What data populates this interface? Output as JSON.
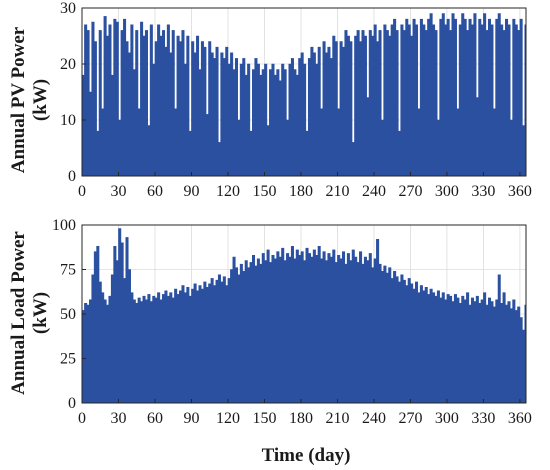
{
  "figure": {
    "xlabel": "Time (day)"
  },
  "chart_data": [
    {
      "type": "area",
      "ylabel_line1": "Annual PV Power",
      "ylabel_line2": "(kW)",
      "xlim": [
        0,
        365
      ],
      "ylim": [
        0,
        30
      ],
      "xticks": [
        0,
        30,
        60,
        90,
        120,
        150,
        180,
        210,
        240,
        270,
        300,
        330,
        360
      ],
      "yticks": [
        0,
        10,
        20,
        30
      ],
      "grid": true,
      "fill_color": "#2b50a0",
      "series": [
        {
          "x": [
            0,
            2,
            4,
            6,
            8,
            10,
            12,
            14,
            16,
            18,
            20,
            22,
            24,
            26,
            28,
            30,
            32,
            34,
            36,
            38,
            40,
            42,
            44,
            46,
            48,
            50,
            52,
            54,
            56,
            58,
            60,
            62,
            64,
            66,
            68,
            70,
            72,
            74,
            76,
            78,
            80,
            82,
            84,
            86,
            88,
            90,
            92,
            94,
            96,
            98,
            100,
            102,
            104,
            106,
            108,
            110,
            112,
            114,
            116,
            118,
            120,
            122,
            124,
            126,
            128,
            130,
            132,
            134,
            136,
            138,
            140,
            142,
            144,
            146,
            148,
            150,
            152,
            154,
            156,
            158,
            160,
            162,
            164,
            166,
            168,
            170,
            172,
            174,
            176,
            178,
            180,
            182,
            184,
            186,
            188,
            190,
            192,
            194,
            196,
            198,
            200,
            202,
            204,
            206,
            208,
            210,
            212,
            214,
            216,
            218,
            220,
            222,
            224,
            226,
            228,
            230,
            232,
            234,
            236,
            238,
            240,
            242,
            244,
            246,
            248,
            250,
            252,
            254,
            256,
            258,
            260,
            262,
            264,
            266,
            268,
            270,
            272,
            274,
            276,
            278,
            280,
            282,
            284,
            286,
            288,
            290,
            292,
            294,
            296,
            298,
            300,
            302,
            304,
            306,
            308,
            310,
            312,
            314,
            316,
            318,
            320,
            322,
            324,
            326,
            328,
            330,
            332,
            334,
            336,
            338,
            340,
            342,
            344,
            346,
            348,
            350,
            352,
            354,
            356,
            358,
            360,
            362,
            364
          ],
          "values": [
            18,
            27,
            26,
            15,
            27.5,
            24,
            8,
            26,
            12,
            28.5,
            25,
            27,
            18,
            28,
            27.5,
            10,
            26,
            28,
            24,
            22,
            27,
            19,
            26,
            12,
            27.5,
            25,
            26,
            9,
            27,
            20,
            24,
            27,
            25,
            26,
            23,
            27,
            22,
            26,
            12,
            25,
            24,
            26,
            20,
            25,
            8,
            24,
            22,
            25,
            19,
            24,
            23,
            11,
            24,
            22,
            21,
            23,
            6,
            22,
            21,
            23,
            20,
            22,
            19,
            21,
            10,
            20,
            21,
            18,
            20,
            8,
            19,
            21,
            20,
            18,
            19,
            20,
            9,
            19,
            20,
            18,
            19,
            17,
            20,
            19,
            10,
            20,
            21,
            19,
            18,
            21,
            22,
            20,
            8,
            21,
            23,
            22,
            20,
            23,
            12,
            24,
            22,
            23,
            21,
            25,
            24,
            12,
            24,
            23,
            26,
            25,
            24,
            6,
            25,
            26,
            24,
            26,
            25,
            14,
            26,
            25,
            27,
            24,
            26,
            10,
            27,
            26,
            25,
            27,
            28,
            26,
            8,
            27,
            26,
            28,
            27,
            25,
            28,
            27,
            12,
            28,
            27,
            26,
            28,
            29,
            27,
            26,
            10,
            28,
            29,
            27,
            28,
            26,
            29,
            28,
            12,
            27,
            29,
            28,
            26,
            28,
            27,
            29,
            14,
            28,
            27,
            29,
            26,
            28,
            27,
            12,
            28,
            29,
            27,
            26,
            28,
            27,
            10,
            28,
            27,
            26,
            28,
            9,
            27
          ]
        }
      ]
    },
    {
      "type": "area",
      "ylabel_line1": "Annual Load Power",
      "ylabel_line2": "(kW)",
      "xlim": [
        0,
        365
      ],
      "ylim": [
        0,
        100
      ],
      "xticks": [
        0,
        30,
        60,
        90,
        120,
        150,
        180,
        210,
        240,
        270,
        300,
        330,
        360
      ],
      "yticks": [
        0,
        25,
        50,
        75,
        100
      ],
      "grid": true,
      "fill_color": "#2b50a0",
      "series": [
        {
          "x": [
            0,
            2,
            4,
            6,
            8,
            10,
            12,
            14,
            16,
            18,
            20,
            22,
            24,
            26,
            28,
            30,
            32,
            34,
            36,
            38,
            40,
            42,
            44,
            46,
            48,
            50,
            52,
            54,
            56,
            58,
            60,
            62,
            64,
            66,
            68,
            70,
            72,
            74,
            76,
            78,
            80,
            82,
            84,
            86,
            88,
            90,
            92,
            94,
            96,
            98,
            100,
            102,
            104,
            106,
            108,
            110,
            112,
            114,
            116,
            118,
            120,
            122,
            124,
            126,
            128,
            130,
            132,
            134,
            136,
            138,
            140,
            142,
            144,
            146,
            148,
            150,
            152,
            154,
            156,
            158,
            160,
            162,
            164,
            166,
            168,
            170,
            172,
            174,
            176,
            178,
            180,
            182,
            184,
            186,
            188,
            190,
            192,
            194,
            196,
            198,
            200,
            202,
            204,
            206,
            208,
            210,
            212,
            214,
            216,
            218,
            220,
            222,
            224,
            226,
            228,
            230,
            232,
            234,
            236,
            238,
            240,
            242,
            244,
            246,
            248,
            250,
            252,
            254,
            256,
            258,
            260,
            262,
            264,
            266,
            268,
            270,
            272,
            274,
            276,
            278,
            280,
            282,
            284,
            286,
            288,
            290,
            292,
            294,
            296,
            298,
            300,
            302,
            304,
            306,
            308,
            310,
            312,
            314,
            316,
            318,
            320,
            322,
            324,
            326,
            328,
            330,
            332,
            334,
            336,
            338,
            340,
            342,
            344,
            346,
            348,
            350,
            352,
            354,
            356,
            358,
            360,
            362,
            364
          ],
          "values": [
            52,
            56,
            55,
            58,
            72,
            85,
            88,
            68,
            62,
            58,
            55,
            60,
            72,
            88,
            80,
            98,
            90,
            70,
            93,
            75,
            62,
            58,
            56,
            59,
            57,
            60,
            58,
            61,
            57,
            60,
            59,
            62,
            58,
            61,
            63,
            60,
            62,
            59,
            64,
            61,
            63,
            66,
            62,
            65,
            60,
            64,
            67,
            63,
            66,
            64,
            68,
            65,
            67,
            70,
            66,
            69,
            72,
            68,
            71,
            66,
            70,
            75,
            82,
            76,
            72,
            78,
            74,
            80,
            76,
            79,
            83,
            77,
            81,
            78,
            84,
            80,
            86,
            79,
            83,
            81,
            85,
            82,
            87,
            80,
            84,
            82,
            88,
            81,
            86,
            83,
            85,
            80,
            87,
            84,
            82,
            86,
            83,
            88,
            81,
            85,
            80,
            84,
            82,
            86,
            79,
            83,
            81,
            85,
            78,
            84,
            80,
            86,
            82,
            79,
            85,
            78,
            82,
            80,
            84,
            76,
            81,
            92,
            78,
            74,
            77,
            73,
            76,
            70,
            74,
            71,
            68,
            72,
            69,
            66,
            70,
            67,
            64,
            68,
            62,
            66,
            63,
            65,
            61,
            64,
            62,
            60,
            63,
            59,
            62,
            58,
            61,
            60,
            57,
            61,
            59,
            56,
            60,
            58,
            62,
            55,
            59,
            57,
            60,
            56,
            58,
            62,
            55,
            59,
            57,
            54,
            58,
            72,
            56,
            62,
            55,
            57,
            53,
            58,
            52,
            54,
            48,
            41,
            55
          ]
        }
      ]
    }
  ]
}
